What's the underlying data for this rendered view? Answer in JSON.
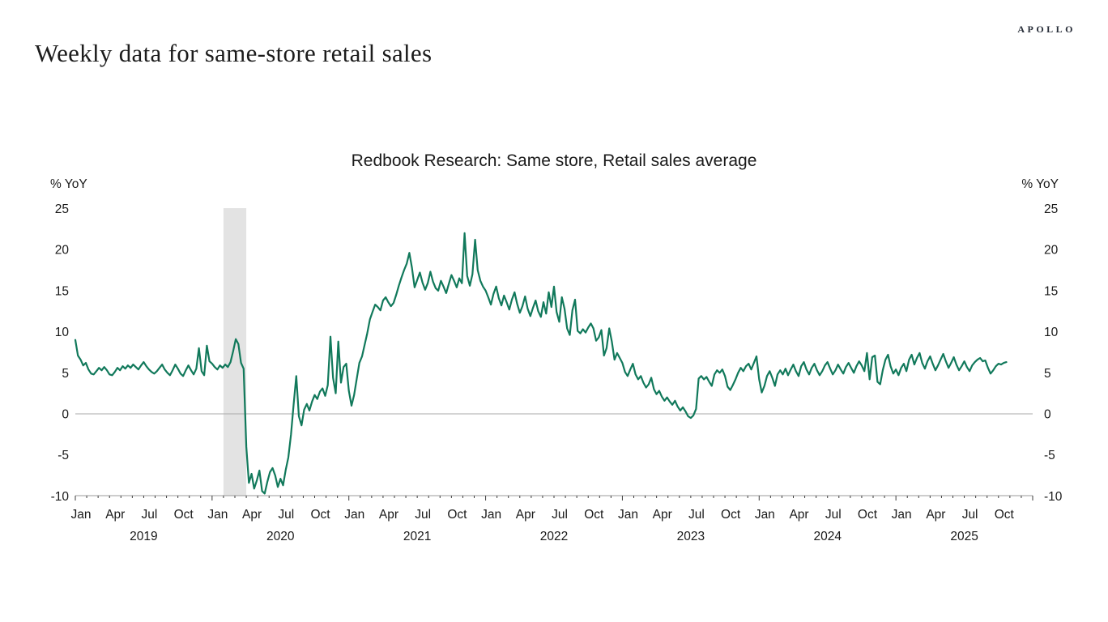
{
  "page": {
    "logo_text": "APOLLO",
    "title": "Weekly data for same-store retail sales"
  },
  "chart": {
    "title": "Redbook Research: Same store, Retail sales average",
    "y_axis_label_left": "% YoY",
    "y_axis_label_right": "% YoY"
  },
  "chart_data": {
    "type": "line",
    "title": "Redbook Research: Same store, Retail sales average",
    "ylabel": "% YoY",
    "ylim": [
      -10,
      25
    ],
    "yticks": [
      25,
      20,
      15,
      10,
      5,
      0,
      -5,
      -10
    ],
    "x_start": "2019-01",
    "x_end": "2025-11",
    "frequency": "weekly",
    "years": [
      2019,
      2020,
      2021,
      2022,
      2023,
      2024,
      2025
    ],
    "month_tick_labels": [
      "Jan",
      "Apr",
      "Jul",
      "Oct"
    ],
    "grid": false,
    "legend_position": "none",
    "zero_line": true,
    "line_color": "#11795b",
    "text_color": "#1a1a1a",
    "recession_band": {
      "from": "2020-02",
      "to": "2020-04",
      "color": "#e3e3e3"
    },
    "series": [
      {
        "name": "Redbook Research same-store retail sales average (% YoY)",
        "values": [
          9.0,
          7.1,
          6.6,
          5.9,
          6.2,
          5.4,
          4.9,
          4.8,
          5.2,
          5.6,
          5.3,
          5.7,
          5.3,
          4.8,
          4.7,
          5.1,
          5.6,
          5.3,
          5.8,
          5.5,
          5.9,
          5.6,
          6.0,
          5.7,
          5.4,
          5.9,
          6.3,
          5.8,
          5.4,
          5.1,
          4.9,
          5.2,
          5.6,
          6.0,
          5.4,
          5.0,
          4.7,
          5.3,
          6.0,
          5.5,
          4.9,
          4.6,
          5.3,
          5.9,
          5.3,
          4.8,
          5.5,
          8.0,
          5.2,
          4.7,
          8.3,
          6.4,
          6.1,
          5.7,
          5.4,
          5.9,
          5.6,
          6.0,
          5.7,
          6.3,
          7.6,
          9.1,
          8.5,
          6.2,
          5.5,
          -4.0,
          -8.4,
          -7.3,
          -9.1,
          -8.1,
          -6.9,
          -9.4,
          -9.7,
          -8.3,
          -7.1,
          -6.6,
          -7.5,
          -8.9,
          -7.9,
          -8.7,
          -6.8,
          -5.3,
          -2.5,
          1.1,
          4.6,
          -0.3,
          -1.4,
          0.5,
          1.2,
          0.4,
          1.5,
          2.3,
          1.8,
          2.7,
          3.1,
          2.2,
          3.5,
          9.4,
          4.4,
          2.5,
          8.8,
          3.8,
          5.7,
          6.1,
          2.8,
          1.0,
          2.3,
          4.3,
          6.2,
          7.0,
          8.4,
          9.8,
          11.5,
          12.4,
          13.3,
          13.0,
          12.6,
          13.8,
          14.2,
          13.6,
          13.1,
          13.5,
          14.5,
          15.6,
          16.6,
          17.5,
          18.3,
          19.6,
          17.8,
          15.4,
          16.3,
          17.2,
          16.0,
          15.1,
          15.9,
          17.3,
          16.1,
          15.3,
          15.0,
          16.2,
          15.5,
          14.7,
          15.8,
          16.9,
          16.2,
          15.4,
          16.5,
          15.9,
          22.0,
          16.8,
          15.6,
          17.0,
          21.2,
          17.5,
          16.2,
          15.5,
          15.0,
          14.2,
          13.3,
          14.6,
          15.5,
          14.1,
          13.2,
          14.4,
          13.6,
          12.7,
          13.9,
          14.8,
          13.4,
          12.3,
          13.1,
          14.3,
          12.8,
          11.9,
          12.9,
          13.8,
          12.5,
          11.8,
          13.6,
          12.2,
          14.8,
          13.0,
          15.5,
          12.4,
          11.2,
          14.2,
          12.8,
          10.4,
          9.6,
          12.6,
          13.9,
          10.1,
          9.8,
          10.3,
          9.9,
          10.5,
          11.0,
          10.4,
          8.9,
          9.3,
          10.2,
          7.1,
          8.0,
          10.4,
          8.8,
          6.6,
          7.4,
          6.8,
          6.2,
          5.1,
          4.6,
          5.4,
          6.1,
          4.8,
          4.2,
          4.6,
          3.8,
          3.2,
          3.6,
          4.4,
          3.0,
          2.4,
          2.8,
          2.1,
          1.6,
          2.0,
          1.5,
          1.1,
          1.6,
          0.9,
          0.4,
          0.8,
          0.3,
          -0.3,
          -0.5,
          -0.2,
          0.6,
          4.3,
          4.6,
          4.2,
          4.5,
          3.9,
          3.4,
          4.8,
          5.3,
          5.0,
          5.4,
          4.6,
          3.3,
          2.9,
          3.5,
          4.2,
          5.0,
          5.6,
          5.2,
          5.8,
          6.1,
          5.4,
          6.2,
          7.0,
          4.2,
          2.6,
          3.4,
          4.6,
          5.2,
          4.4,
          3.4,
          4.8,
          5.3,
          4.8,
          5.5,
          4.7,
          5.4,
          6.0,
          5.2,
          4.6,
          5.8,
          6.3,
          5.4,
          4.8,
          5.6,
          6.1,
          5.3,
          4.7,
          5.2,
          5.9,
          6.3,
          5.5,
          4.8,
          5.3,
          6.0,
          5.4,
          4.9,
          5.7,
          6.2,
          5.6,
          5.0,
          5.8,
          6.4,
          5.9,
          5.2,
          7.4,
          4.2,
          6.9,
          7.1,
          3.9,
          3.6,
          5.3,
          6.6,
          7.2,
          5.8,
          4.9,
          5.4,
          4.7,
          5.6,
          6.1,
          5.2,
          6.6,
          7.2,
          6.0,
          6.8,
          7.4,
          6.2,
          5.5,
          6.4,
          7.0,
          6.1,
          5.3,
          5.9,
          6.6,
          7.3,
          6.4,
          5.6,
          6.2,
          6.9,
          6.0,
          5.3,
          5.8,
          6.4,
          5.7,
          5.2,
          5.9,
          6.3,
          6.6,
          6.8,
          6.4,
          6.5,
          5.6,
          4.9,
          5.3,
          5.8,
          6.1,
          6.0,
          6.2,
          6.3
        ]
      }
    ]
  }
}
